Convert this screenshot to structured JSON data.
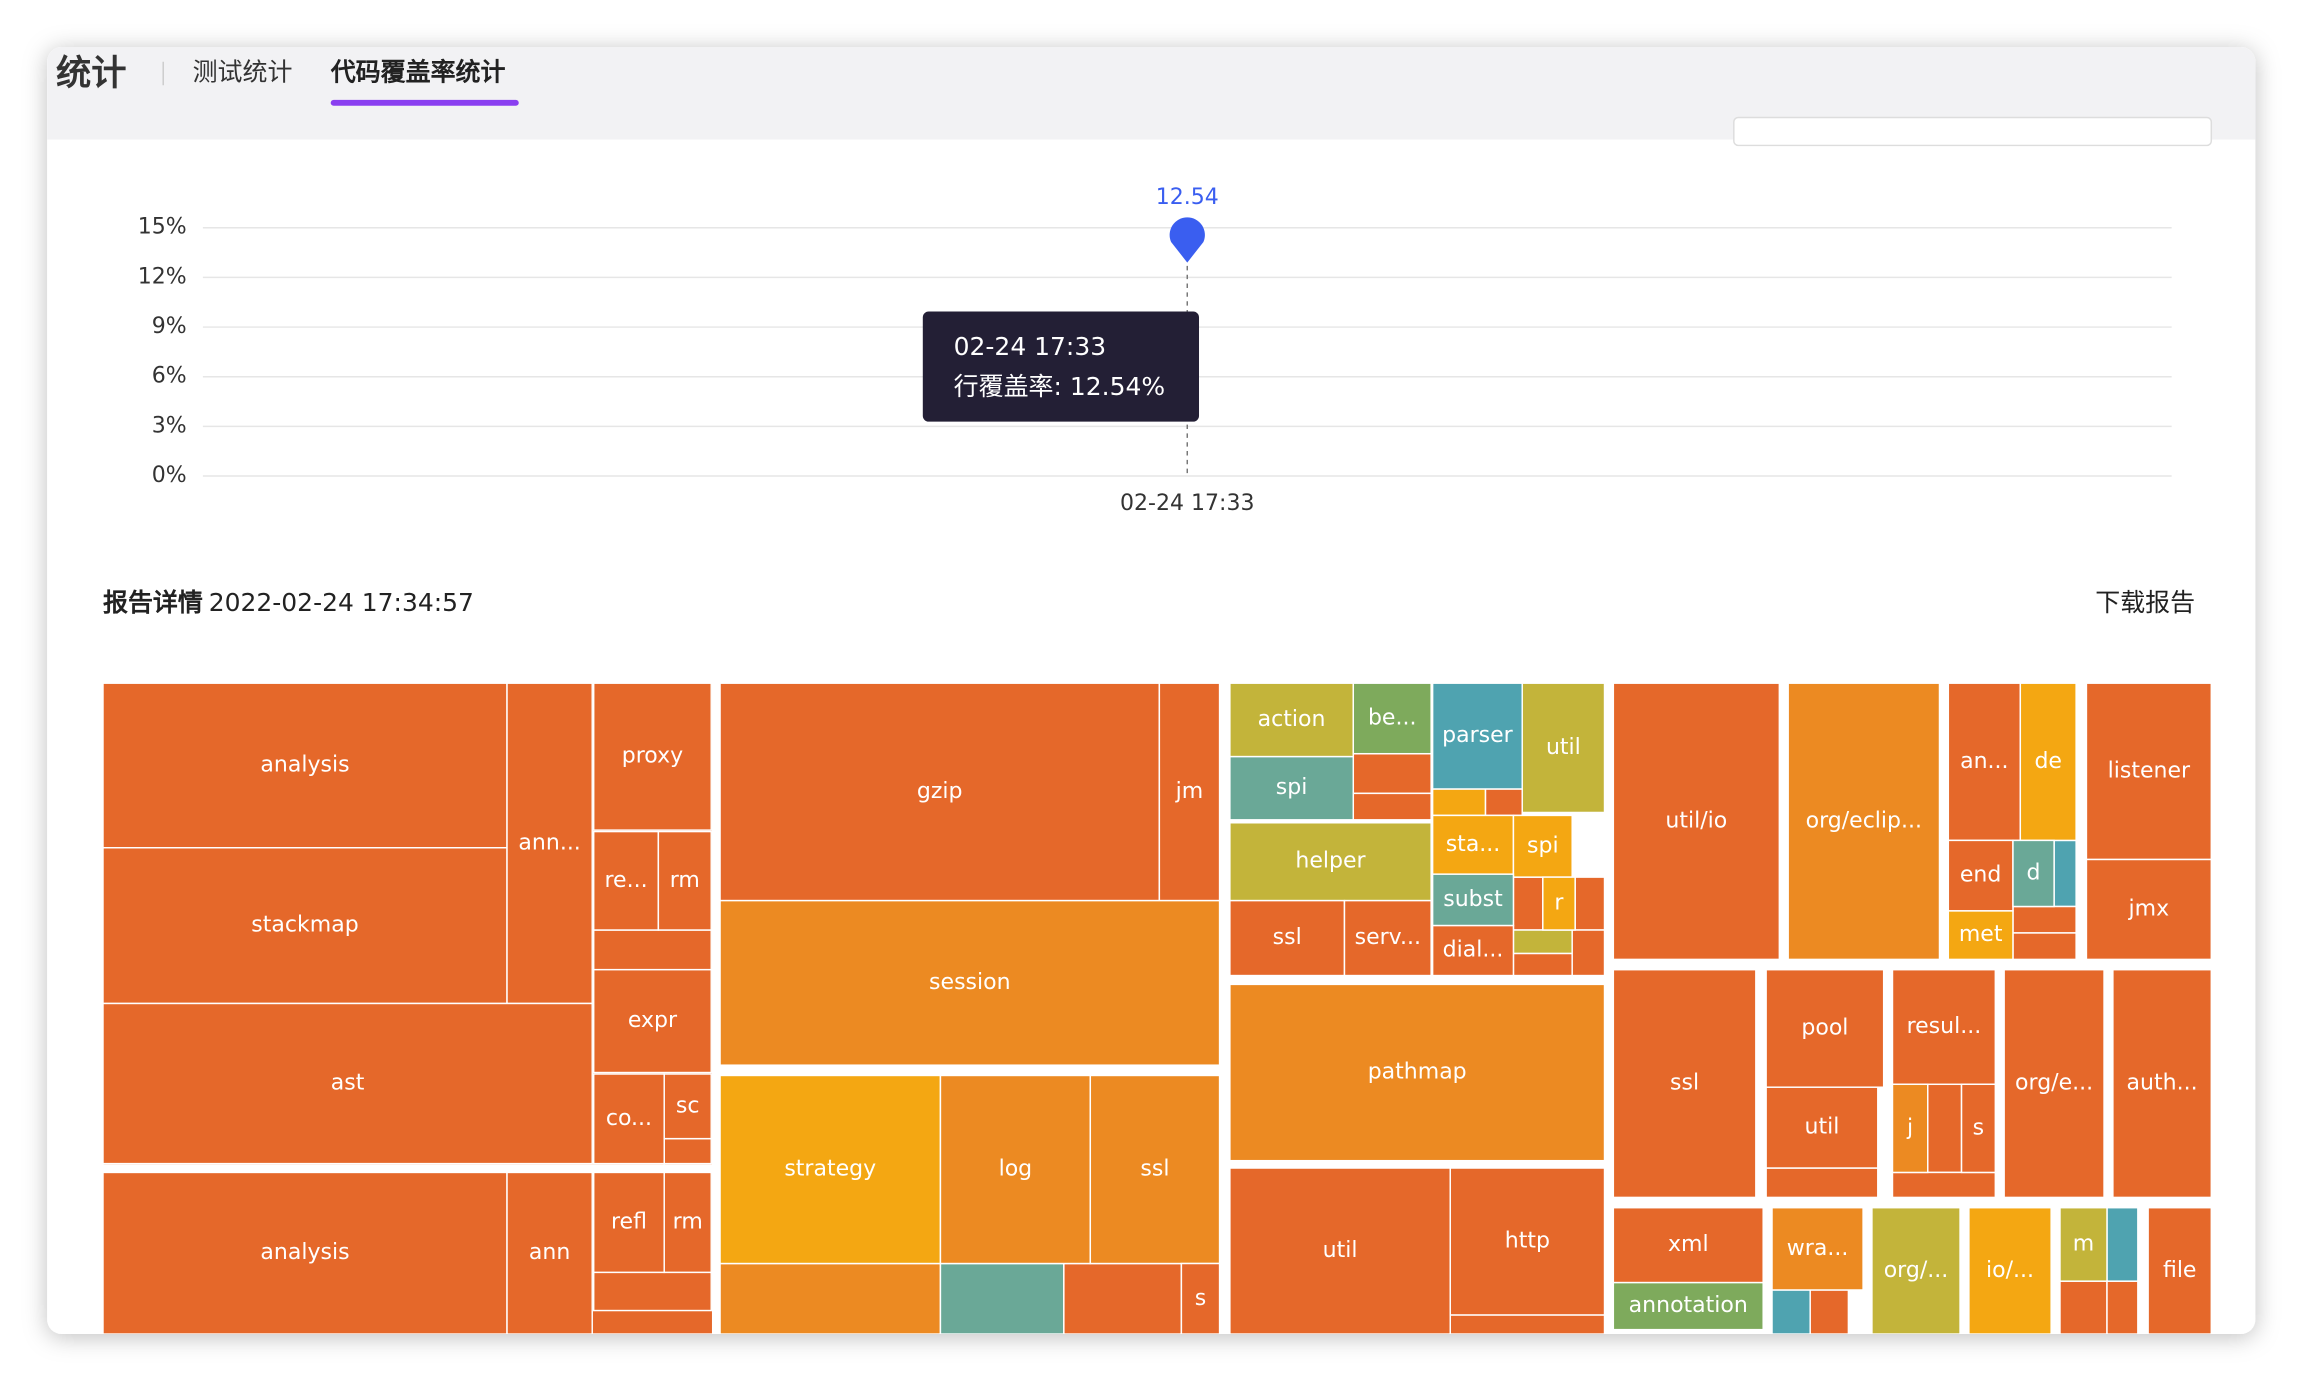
{
  "tabs": {
    "title": "统计",
    "items": [
      "测试统计",
      "代码覆盖率统计"
    ],
    "active": 1
  },
  "chart_data": {
    "type": "line",
    "categories": [
      "02-24 17:33"
    ],
    "series": [
      {
        "name": "行覆盖率",
        "color": "#3a5ef0",
        "values": [
          12.54
        ]
      }
    ],
    "ylim": [
      0,
      15
    ],
    "yticks": [
      {
        "value": 0,
        "label": "0%"
      },
      {
        "value": 3,
        "label": "3%"
      },
      {
        "value": 6,
        "label": "6%"
      },
      {
        "value": 9,
        "label": "9%"
      },
      {
        "value": 12,
        "label": "12%"
      },
      {
        "value": 15,
        "label": "15%"
      }
    ],
    "grid": true,
    "tooltip": {
      "title": "02-24 17:33",
      "text": "行覆盖率: 12.54%"
    }
  },
  "report": {
    "title": "报告详情",
    "time": "2022-02-24 17:34:57",
    "download": "下载报告"
  },
  "treemap": {
    "labels": [
      "analysis",
      "stackmap",
      "ann...",
      "proxy",
      "re...",
      "rm",
      "expr",
      "ast",
      "co...",
      "sc",
      "analysis",
      "ann",
      "refl",
      "rm",
      "gzip",
      "jm",
      "session",
      "strategy",
      "log",
      "ssl",
      "s",
      "action",
      "be...",
      "parser",
      "util",
      "spi",
      "helper",
      "sta...",
      "spi",
      "subst",
      "r",
      "ssl",
      "serv...",
      "dial...",
      "pathmap",
      "util",
      "http",
      "util/io",
      "org/eclip...",
      "an...",
      "de",
      "listener",
      "jmx",
      "end",
      "d",
      "met",
      "ssl",
      "pool",
      "util",
      "resul...",
      "j",
      "s",
      "org/e...",
      "auth...",
      "xml",
      "annotation",
      "wra...",
      "org/...",
      "io/...",
      "m",
      "file"
    ]
  }
}
